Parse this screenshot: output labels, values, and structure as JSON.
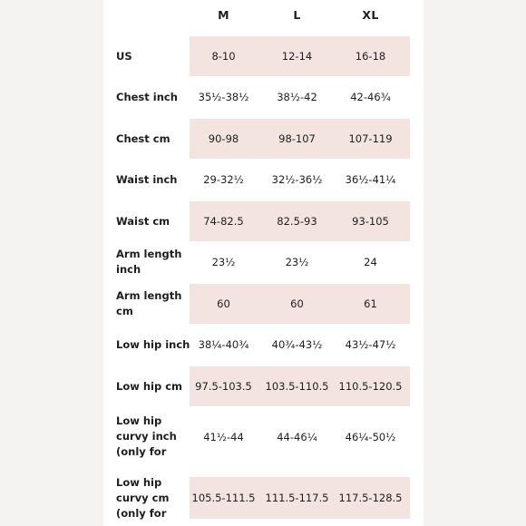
{
  "sizes": [
    "M",
    "L",
    "XL"
  ],
  "rows": [
    {
      "label": "US",
      "values": [
        "8-10",
        "12-14",
        "16-18"
      ]
    },
    {
      "label": "Chest inch",
      "values": [
        "35½-38½",
        "38½-42",
        "42-46¾"
      ]
    },
    {
      "label": "Chest cm",
      "values": [
        "90-98",
        "98-107",
        "107-119"
      ]
    },
    {
      "label": "Waist inch",
      "values": [
        "29-32½",
        "32½-36½",
        "36½-41¼"
      ]
    },
    {
      "label": "Waist cm",
      "values": [
        "74-82.5",
        "82.5-93",
        "93-105"
      ]
    },
    {
      "label": "Arm length inch",
      "values": [
        "23½",
        "23½",
        "24"
      ]
    },
    {
      "label": "Arm length cm",
      "values": [
        "60",
        "60",
        "61"
      ]
    },
    {
      "label": "Low hip inch",
      "values": [
        "38¼-40¾",
        "40¾-43½",
        "43½-47½"
      ]
    },
    {
      "label": "Low hip cm",
      "values": [
        "97.5-103.5",
        "103.5-110.5",
        "110.5-120.5"
      ]
    },
    {
      "label": "Low hip curvy inch (only for Cu...",
      "values": [
        "41½-44",
        "44-46¼",
        "46¼-50½"
      ]
    },
    {
      "label": "Low hip curvy cm (only for Cu...",
      "values": [
        "105.5-111.5",
        "111.5-117.5",
        "117.5-128.5"
      ]
    }
  ]
}
